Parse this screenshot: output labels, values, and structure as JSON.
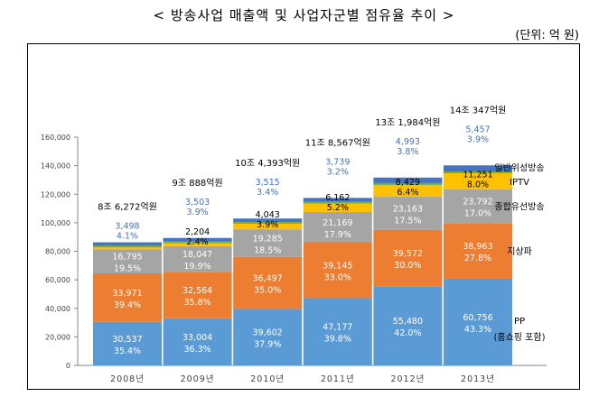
{
  "page": {
    "title": "< 방송사업 매출액 및 사업자군별 점유율 추이 >",
    "unit": "(단위: 억 원)"
  },
  "colors": {
    "PP": "#5B9BD5",
    "지상파": "#ED7D31",
    "종합유선방송": "#A5A5A5",
    "IPTV": "#FFC000",
    "위성_dark": "#4472C4",
    "위성_green": "#70AD47",
    "top_label_color": "#4472C4"
  },
  "chart_data": {
    "type": "bar",
    "stacked": true,
    "categories": [
      "2008년",
      "2009년",
      "2010년",
      "2011년",
      "2012년",
      "2013년"
    ],
    "ylim": [
      0,
      160000
    ],
    "yticks": [
      "0",
      "20,000",
      "40,000",
      "60,000",
      "80,000",
      "100,000",
      "120,000",
      "140,000",
      "160,000"
    ],
    "ytick_values": [
      0,
      20000,
      40000,
      60000,
      80000,
      100000,
      120000,
      140000,
      160000
    ],
    "grid": false,
    "legend": "right (inline labels beside 2013 bar)",
    "totals": [
      "8조 6,272억원",
      "9조 888억원",
      "10조 4,393억원",
      "11조 8,567억원",
      "13조 1,984억원",
      "14조 347억원"
    ],
    "series": [
      {
        "name": "PP",
        "color_key": "PP",
        "values": [
          30537,
          33004,
          39602,
          47177,
          55480,
          60756
        ],
        "labels": [
          "30,537",
          "33,004",
          "39,602",
          "47,177",
          "55,480",
          "60,756"
        ],
        "shares": [
          "35.4%",
          "36.3%",
          "37.9%",
          "39.8%",
          "42.0%",
          "43.3%"
        ]
      },
      {
        "name": "지상파",
        "color_key": "지상파",
        "values": [
          33971,
          32564,
          36497,
          39145,
          39572,
          38963
        ],
        "labels": [
          "33,971",
          "32,564",
          "36,497",
          "39,145",
          "39,572",
          "38,963"
        ],
        "shares": [
          "39.4%",
          "35.8%",
          "35.0%",
          "33.0%",
          "30.0%",
          "27.8%"
        ]
      },
      {
        "name": "종합유선방송",
        "color_key": "종합유선방송",
        "values": [
          16795,
          18047,
          19285,
          21169,
          23163,
          23792
        ],
        "labels": [
          "16,795",
          "18,047",
          "19,285",
          "21,169",
          "23,163",
          "23,792"
        ],
        "shares": [
          "19.5%",
          "19.9%",
          "18.5%",
          "17.9%",
          "17.5%",
          "17.0%"
        ]
      },
      {
        "name": "IPTV",
        "color_key": "IPTV",
        "values": [
          1471,
          2204,
          4043,
          6162,
          8429,
          11251
        ],
        "labels": [
          "",
          "2,204",
          "4,043",
          "6,162",
          "8,429",
          "11,251"
        ],
        "shares": [
          "",
          "2.4%",
          "3.9%",
          "5.2%",
          "6.4%",
          "8.0%"
        ]
      },
      {
        "name": "일반위성방송",
        "color_key": "위성_dark",
        "values": [
          3498,
          3503,
          3515,
          3739,
          4993,
          5457
        ],
        "labels": [
          "3,498",
          "3,503",
          "3,515",
          "3,739",
          "4,993",
          "5,457"
        ],
        "shares": [
          "4.1%",
          "3.9%",
          "3.4%",
          "3.2%",
          "3.8%",
          "3.9%"
        ]
      }
    ],
    "legend_labels": {
      "PP": "PP",
      "PP_sub": "(홈쇼핑 포함)",
      "지상파": "지상파",
      "종합유선방송": "종합유선방송",
      "IPTV": "IPTV",
      "일반위성방송": "일반위성방송"
    }
  }
}
